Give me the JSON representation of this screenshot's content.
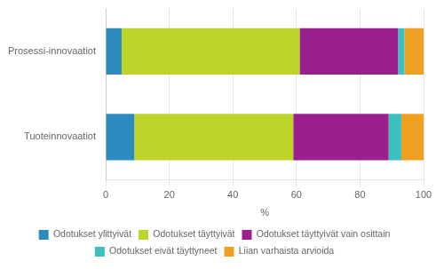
{
  "chart_data": {
    "type": "bar",
    "orientation": "horizontal",
    "stacked": true,
    "categories": [
      "Prosessi-innovaatiot",
      "Tuoteinnovaatiot"
    ],
    "series": [
      {
        "name": "Odotukset ylittyivät",
        "color": "#2d8bbf",
        "values": [
          5,
          9
        ]
      },
      {
        "name": "Odotukset täyttyivät",
        "color": "#bed42a",
        "values": [
          56,
          50
        ]
      },
      {
        "name": "Odotukset täyttyivät vain osittain",
        "color": "#9b1f8e",
        "values": [
          31,
          30
        ]
      },
      {
        "name": "Odotukset eivät täyttyneet",
        "color": "#3bbfbf",
        "values": [
          2,
          4
        ]
      },
      {
        "name": "Liian varhaista arvioida",
        "color": "#f0a020",
        "values": [
          6,
          7
        ]
      }
    ],
    "xlabel": "%",
    "xlim": [
      0,
      100
    ],
    "xticks": [
      0,
      20,
      40,
      60,
      80,
      100
    ],
    "grid": true,
    "legend": "bottom"
  }
}
